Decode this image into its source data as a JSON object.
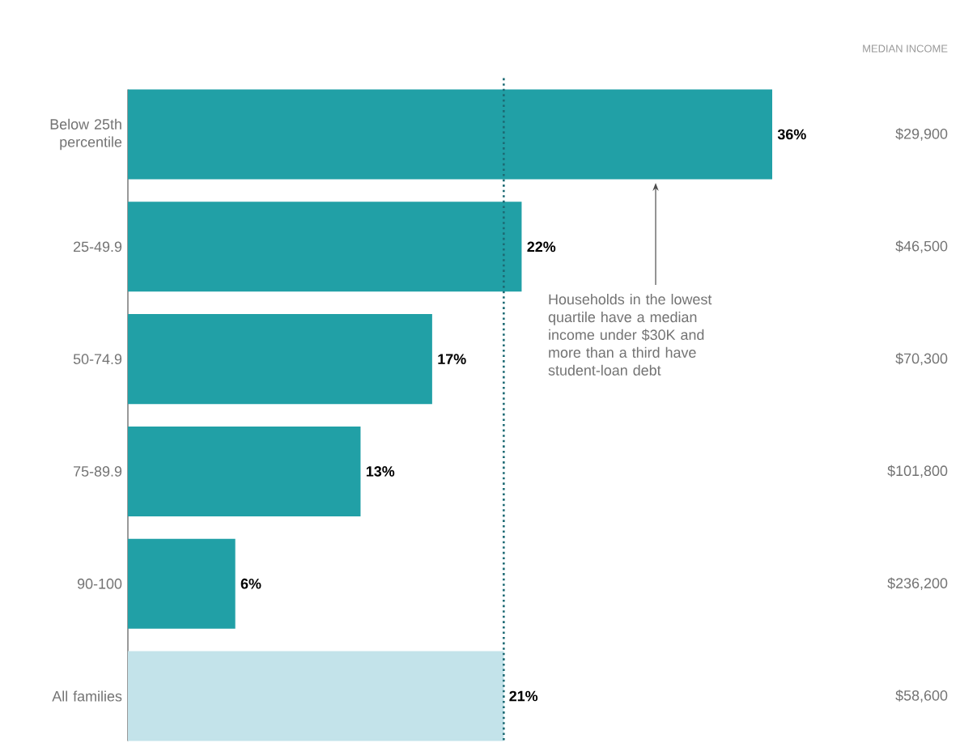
{
  "chart_data": {
    "type": "bar",
    "orientation": "horizontal",
    "categories": [
      "Below 25th percentile",
      "25-49.9",
      "50-74.9",
      "75-89.9",
      "90-100",
      "All families"
    ],
    "values": [
      36,
      22,
      17,
      13,
      6,
      21
    ],
    "colors": [
      "#21a0a6",
      "#21a0a6",
      "#21a0a6",
      "#21a0a6",
      "#21a0a6",
      "#c3e3ea"
    ],
    "value_labels": [
      "36%",
      "22%",
      "17%",
      "13%",
      "6%",
      "21%"
    ],
    "ref_lines": [
      {
        "axis": "x",
        "value": 21,
        "color": "#1d6a74",
        "line_style": "dotted"
      }
    ],
    "annotations": [
      "MEDIAN INCOME",
      "$29,900",
      "$46,500",
      "$70,300",
      "$101,800",
      "$236,200",
      "$58,600",
      "Households in the lowest quartile have a median income under $30K and more than a third have student-loan debt"
    ]
  }
}
